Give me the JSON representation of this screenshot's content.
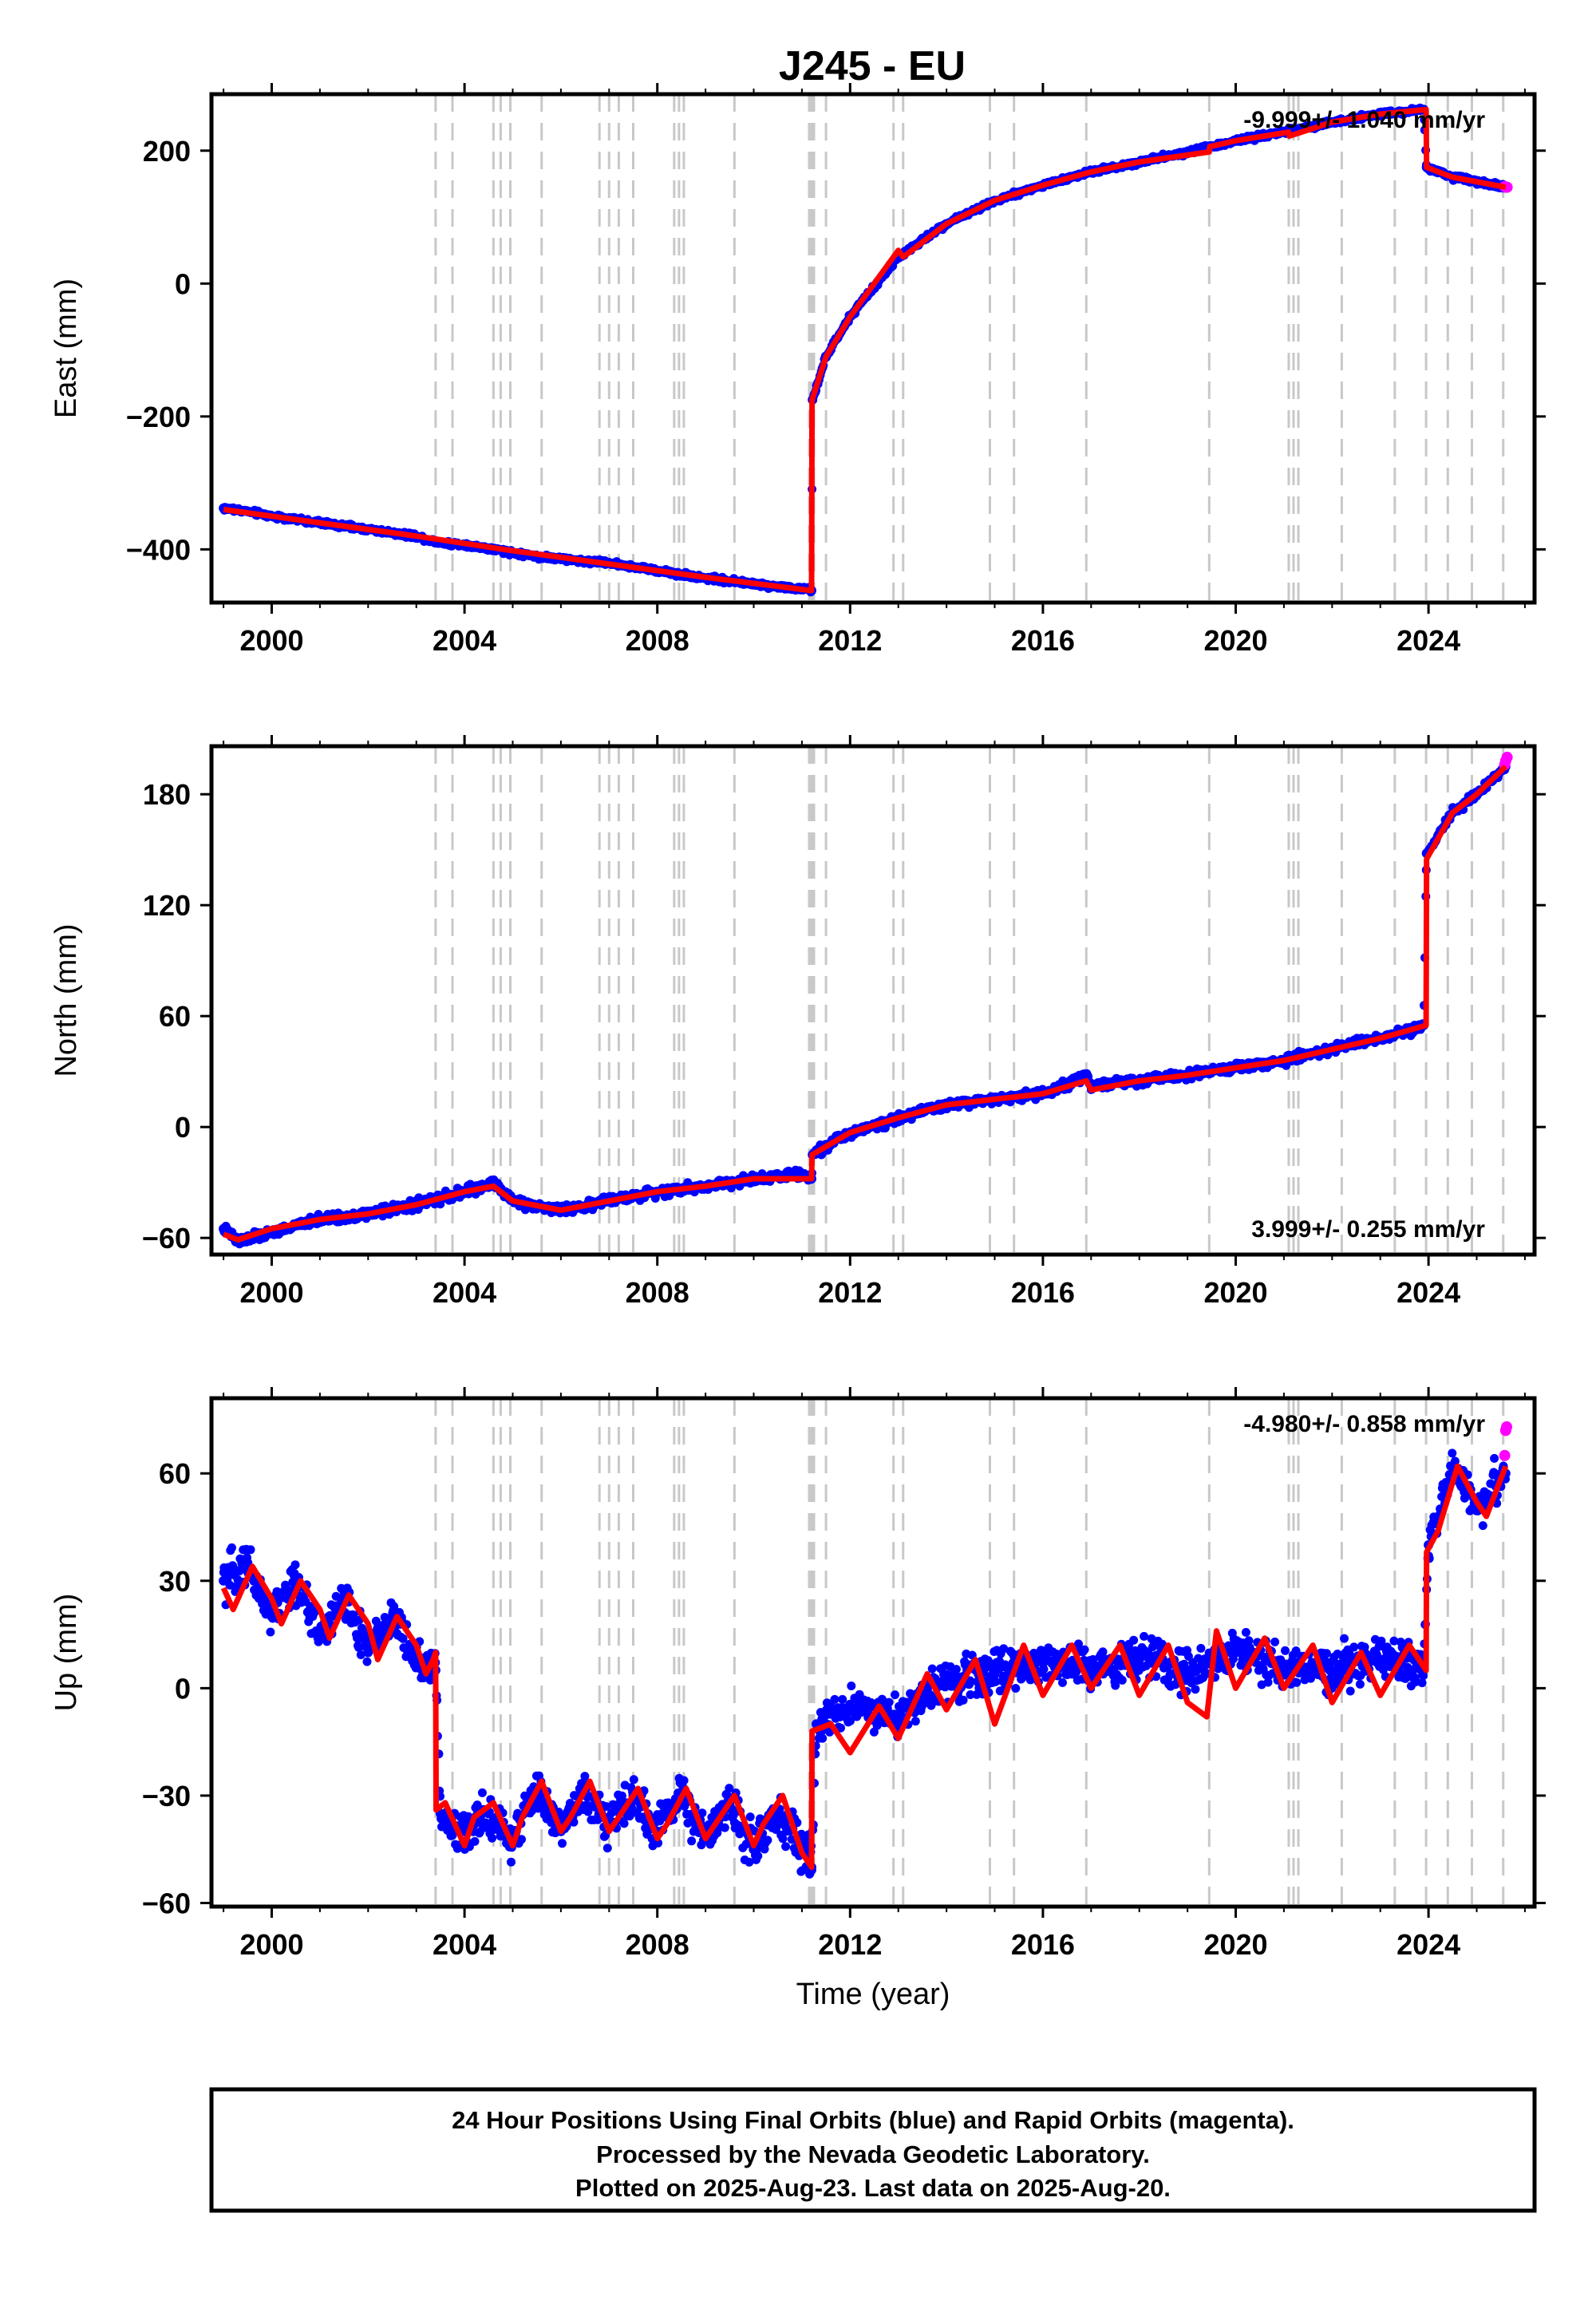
{
  "title": "J245 - EU",
  "colors": {
    "final_points": "#0000ff",
    "rapid_points": "#ff00ff",
    "model": "#ff0000",
    "offset_lines": "#c8c8c8"
  },
  "footer": {
    "line1": "24 Hour Positions Using Final Orbits (blue) and Rapid Orbits (magenta).",
    "line2": "Processed by the Nevada Geodetic Laboratory.",
    "line3": "Plotted on 2025-Aug-23. Last data on 2025-Aug-20."
  },
  "chart_data": [
    {
      "type": "scatter",
      "ylabel": "East (mm)",
      "xlim": [
        1998.75,
        2026.2
      ],
      "ylim": [
        -480,
        285
      ],
      "xticks": [
        2000,
        2004,
        2008,
        2012,
        2016,
        2020,
        2024
      ],
      "yticks": [
        -400,
        -200,
        0,
        200
      ],
      "rate_label": "-9.999+/- 1.040 mm/yr",
      "grid": false,
      "offset_epochs": [
        2003.4,
        2003.75,
        2004.6,
        2004.75,
        2004.95,
        2005.6,
        2006.8,
        2007.0,
        2007.2,
        2007.5,
        2008.35,
        2008.45,
        2008.55,
        2009.6,
        2011.15,
        2011.2,
        2011.25,
        2011.5,
        2012.9,
        2013.1,
        2014.9,
        2015.4,
        2016.9,
        2019.45,
        2021.1,
        2021.2,
        2021.3,
        2022.2,
        2023.3,
        2023.95,
        2024.4,
        2024.9,
        2025.55
      ],
      "series": [
        {
          "name": "Final Orbits (blue)",
          "x": [
            1999.0,
            1999.5,
            2000.0,
            2001.0,
            2002.0,
            2003.0,
            2003.5,
            2004.0,
            2005.0,
            2006.0,
            2007.0,
            2008.0,
            2009.0,
            2010.0,
            2011.0,
            2011.2,
            2011.22,
            2011.5,
            2012.0,
            2013.0,
            2014.0,
            2015.0,
            2016.0,
            2017.0,
            2018.0,
            2019.0,
            2020.0,
            2021.0,
            2022.0,
            2023.0,
            2023.9,
            2023.96,
            2024.5,
            2025.0,
            2025.6
          ],
          "y": [
            -338,
            -343,
            -350,
            -360,
            -370,
            -380,
            -390,
            -393,
            -405,
            -415,
            -420,
            -432,
            -443,
            -452,
            -460,
            -462,
            -175,
            -110,
            -50,
            40,
            90,
            125,
            148,
            168,
            183,
            198,
            215,
            228,
            243,
            255,
            262,
            175,
            160,
            153,
            145
          ]
        },
        {
          "name": "Rapid Orbits (magenta)",
          "x": [
            2025.58,
            2025.6,
            2025.63
          ],
          "y": [
            146,
            145,
            145
          ]
        }
      ],
      "model": {
        "x": [
          1999.0,
          2001.0,
          2003.0,
          2005.0,
          2007.0,
          2009.0,
          2011.2,
          2011.21,
          2011.5,
          2012.0,
          2013.0,
          2013.1,
          2014.0,
          2015.0,
          2016.0,
          2017.0,
          2018.0,
          2019.45,
          2019.46,
          2020.0,
          2021.1,
          2021.11,
          2022.0,
          2023.0,
          2023.95,
          2023.96,
          2024.5,
          2025.6
        ],
        "y": [
          -340,
          -360,
          -380,
          -402,
          -422,
          -442,
          -462,
          -175,
          -110,
          -50,
          50,
          40,
          90,
          125,
          148,
          168,
          183,
          198,
          206,
          215,
          228,
          222,
          243,
          255,
          262,
          175,
          160,
          145
        ]
      }
    },
    {
      "type": "scatter",
      "ylabel": "North (mm)",
      "xlim": [
        1998.75,
        2026.2
      ],
      "ylim": [
        -69,
        206
      ],
      "xticks": [
        2000,
        2004,
        2008,
        2012,
        2016,
        2020,
        2024
      ],
      "yticks": [
        -60,
        0,
        60,
        120,
        180
      ],
      "rate_label": "3.999+/- 0.255 mm/yr",
      "grid": false,
      "offset_epochs": [
        2003.4,
        2003.75,
        2004.6,
        2004.75,
        2004.95,
        2005.6,
        2006.8,
        2007.0,
        2007.2,
        2007.5,
        2008.35,
        2008.45,
        2008.55,
        2009.6,
        2011.15,
        2011.2,
        2011.25,
        2011.5,
        2012.9,
        2013.1,
        2014.9,
        2015.4,
        2016.9,
        2019.45,
        2021.1,
        2021.2,
        2021.3,
        2022.2,
        2023.3,
        2023.95,
        2024.4,
        2024.9,
        2025.55
      ],
      "series": [
        {
          "name": "Final Orbits (blue)",
          "x": [
            1999.0,
            1999.3,
            2000.0,
            2001.0,
            2002.0,
            2003.0,
            2004.0,
            2004.6,
            2005.0,
            2006.0,
            2007.0,
            2008.0,
            2009.0,
            2010.0,
            2011.0,
            2011.2,
            2011.22,
            2012.0,
            2013.0,
            2014.0,
            2015.0,
            2016.0,
            2016.9,
            2017.0,
            2018.0,
            2019.0,
            2020.0,
            2021.0,
            2022.0,
            2023.0,
            2023.9,
            2023.96,
            2024.5,
            2025.0,
            2025.6
          ],
          "y": [
            -55,
            -62,
            -57,
            -50,
            -47,
            -42,
            -35,
            -30,
            -40,
            -45,
            -40,
            -35,
            -32,
            -28,
            -25,
            -28,
            -15,
            -3,
            5,
            12,
            15,
            18,
            28,
            22,
            25,
            28,
            32,
            36,
            42,
            48,
            55,
            148,
            170,
            180,
            195
          ]
        },
        {
          "name": "Rapid Orbits (magenta)",
          "x": [
            2025.58,
            2025.6,
            2025.63
          ],
          "y": [
            196,
            198,
            200
          ]
        }
      ],
      "model": {
        "x": [
          1999.0,
          1999.3,
          2000.0,
          2001.0,
          2002.0,
          2003.0,
          2004.0,
          2004.6,
          2005.0,
          2006.0,
          2007.0,
          2008.0,
          2009.0,
          2010.0,
          2011.2,
          2011.21,
          2012.0,
          2013.0,
          2014.0,
          2015.0,
          2016.0,
          2016.9,
          2017.0,
          2018.0,
          2019.0,
          2020.0,
          2021.0,
          2022.0,
          2023.0,
          2023.95,
          2023.96,
          2024.5,
          2025.0,
          2025.6
        ],
        "y": [
          -58,
          -61,
          -55,
          -50,
          -47,
          -42,
          -35,
          -32,
          -40,
          -45,
          -40,
          -35,
          -32,
          -28,
          -28,
          -15,
          -3,
          5,
          12,
          15,
          18,
          25,
          20,
          25,
          28,
          32,
          36,
          42,
          48,
          55,
          145,
          170,
          180,
          195
        ]
      }
    },
    {
      "type": "scatter",
      "ylabel": "Up (mm)",
      "xlabel": "Time (year)",
      "xlim": [
        1998.75,
        2026.2
      ],
      "ylim": [
        -61,
        81
      ],
      "xticks": [
        2000,
        2004,
        2008,
        2012,
        2016,
        2020,
        2024
      ],
      "yticks": [
        -60,
        -30,
        0,
        30,
        60
      ],
      "rate_label": "-4.980+/- 0.858 mm/yr",
      "grid": false,
      "offset_epochs": [
        2003.4,
        2003.75,
        2004.6,
        2004.75,
        2004.95,
        2005.6,
        2006.8,
        2007.0,
        2007.2,
        2007.5,
        2008.35,
        2008.45,
        2008.55,
        2009.6,
        2011.15,
        2011.2,
        2011.25,
        2011.5,
        2012.9,
        2013.1,
        2014.9,
        2015.4,
        2016.9,
        2019.45,
        2021.1,
        2021.2,
        2021.3,
        2022.2,
        2023.3,
        2023.95,
        2024.4,
        2024.9,
        2025.55
      ],
      "series": [
        {
          "name": "Final Orbits (blue)",
          "x": [
            1999.0,
            1999.5,
            2000.0,
            2000.5,
            2001.0,
            2001.5,
            2002.0,
            2002.5,
            2003.0,
            2003.4,
            2003.5,
            2004.0,
            2004.5,
            2005.0,
            2005.5,
            2006.0,
            2006.5,
            2007.0,
            2007.5,
            2008.0,
            2008.5,
            2009.0,
            2009.5,
            2010.0,
            2010.5,
            2011.0,
            2011.2,
            2011.3,
            2012.0,
            2013.0,
            2014.0,
            2015.0,
            2016.0,
            2017.0,
            2018.0,
            2019.0,
            2020.0,
            2021.0,
            2022.0,
            2023.0,
            2023.9,
            2024.0,
            2024.5,
            2025.0,
            2025.6
          ],
          "y": [
            30,
            35,
            20,
            30,
            15,
            25,
            10,
            20,
            8,
            5,
            -35,
            -40,
            -35,
            -42,
            -28,
            -40,
            -28,
            -38,
            -30,
            -40,
            -30,
            -42,
            -33,
            -44,
            -35,
            -45,
            -50,
            -10,
            -5,
            -8,
            2,
            5,
            8,
            5,
            8,
            5,
            10,
            5,
            5,
            8,
            5,
            40,
            62,
            50,
            60
          ]
        },
        {
          "name": "Rapid Orbits (magenta)",
          "x": [
            2025.58,
            2025.6,
            2025.62
          ],
          "y": [
            65,
            72,
            73
          ]
        }
      ],
      "model": {
        "x": [
          1999.0,
          1999.2,
          1999.6,
          2000.0,
          2000.2,
          2000.6,
          2001.0,
          2001.2,
          2001.6,
          2002.0,
          2002.2,
          2002.6,
          2003.0,
          2003.2,
          2003.35,
          2003.4,
          2003.41,
          2003.6,
          2004.0,
          2004.2,
          2004.6,
          2005.0,
          2005.2,
          2005.6,
          2006.0,
          2006.2,
          2006.6,
          2007.0,
          2007.2,
          2007.6,
          2008.0,
          2008.2,
          2008.6,
          2009.0,
          2009.2,
          2009.6,
          2010.0,
          2010.2,
          2010.6,
          2011.0,
          2011.2,
          2011.21,
          2011.6,
          2012.0,
          2012.6,
          2013.0,
          2013.6,
          2014.0,
          2014.6,
          2015.0,
          2015.6,
          2016.0,
          2016.6,
          2017.0,
          2017.6,
          2018.0,
          2018.6,
          2019.0,
          2019.4,
          2019.6,
          2020.0,
          2020.6,
          2021.0,
          2021.6,
          2022.0,
          2022.6,
          2023.0,
          2023.6,
          2023.95,
          2023.96,
          2024.2,
          2024.6,
          2025.0,
          2025.2,
          2025.6
        ],
        "y": [
          28,
          22,
          34,
          25,
          18,
          30,
          22,
          14,
          26,
          18,
          8,
          20,
          12,
          4,
          8,
          10,
          -34,
          -32,
          -44,
          -36,
          -32,
          -44,
          -36,
          -26,
          -40,
          -36,
          -26,
          -40,
          -36,
          -28,
          -42,
          -38,
          -28,
          -42,
          -38,
          -30,
          -44,
          -38,
          -30,
          -46,
          -50,
          -12,
          -10,
          -18,
          -5,
          -14,
          4,
          -6,
          8,
          -10,
          12,
          -2,
          12,
          0,
          12,
          -2,
          12,
          -4,
          -8,
          16,
          0,
          14,
          0,
          12,
          -4,
          10,
          -2,
          12,
          5,
          38,
          44,
          62,
          52,
          48,
          62
        ]
      }
    }
  ]
}
